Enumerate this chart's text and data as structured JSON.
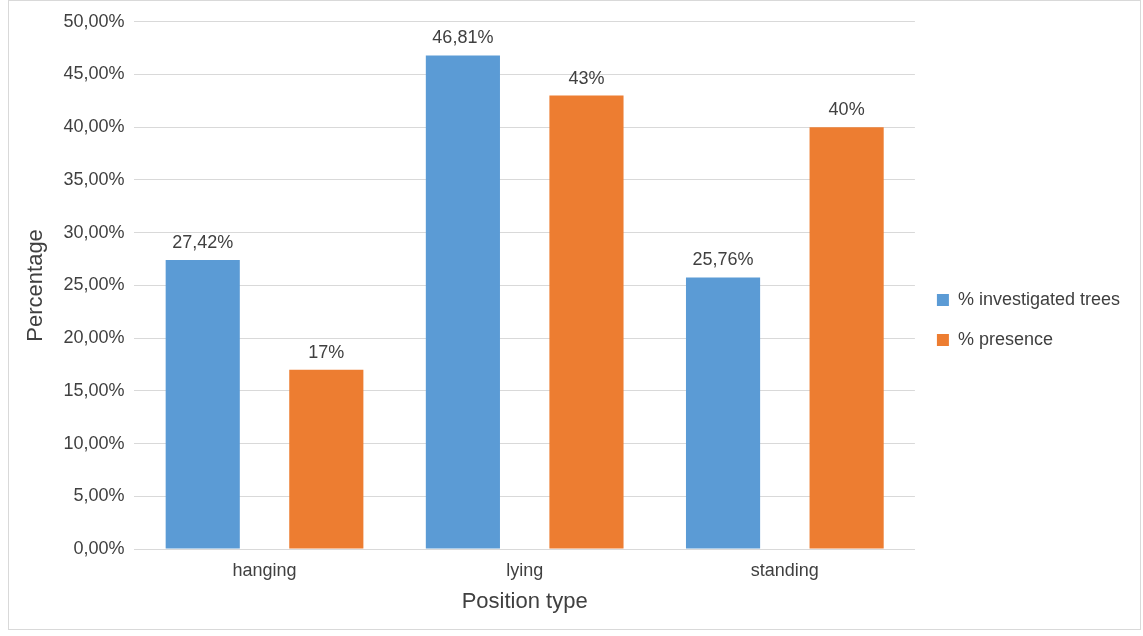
{
  "chart_data": {
    "type": "bar",
    "xlabel": "Position type",
    "ylabel": "Percentage",
    "categories": [
      "hanging",
      "lying",
      "standing"
    ],
    "series": [
      {
        "name": "% investigated trees",
        "color": "#5b9bd5",
        "values": [
          27.42,
          46.81,
          25.76
        ],
        "value_labels": [
          "27,42%",
          "46,81%",
          "25,76%"
        ]
      },
      {
        "name": "% presence",
        "color": "#ed7d31",
        "values": [
          17,
          43,
          40
        ],
        "value_labels": [
          "17%",
          "43%",
          "40%"
        ]
      }
    ],
    "ylim": [
      0,
      50
    ],
    "yticks": [
      {
        "value": 0,
        "label": "0,00%"
      },
      {
        "value": 5,
        "label": "5,00%"
      },
      {
        "value": 10,
        "label": "10,00%"
      },
      {
        "value": 15,
        "label": "15,00%"
      },
      {
        "value": 20,
        "label": "20,00%"
      },
      {
        "value": 25,
        "label": "25,00%"
      },
      {
        "value": 30,
        "label": "30,00%"
      },
      {
        "value": 35,
        "label": "35,00%"
      },
      {
        "value": 40,
        "label": "40,00%"
      },
      {
        "value": 45,
        "label": "45,00%"
      },
      {
        "value": 50,
        "label": "50,00%"
      }
    ],
    "grid": "y",
    "legend": "right"
  }
}
